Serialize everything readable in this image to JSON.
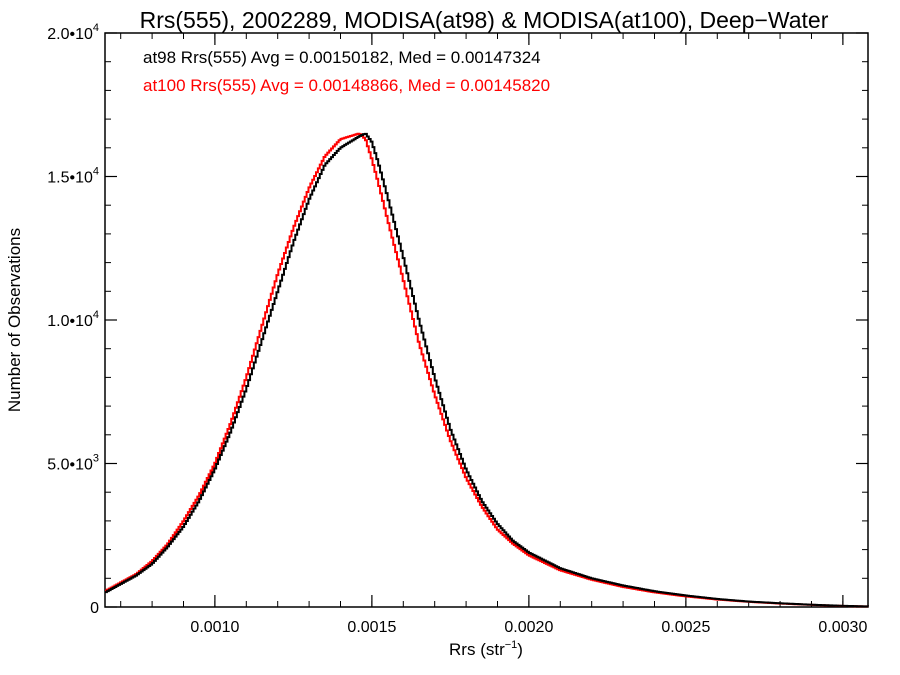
{
  "chart_data": {
    "type": "line",
    "title": "Rrs(555), 2002289, MODISA(at98) & MODISA(at100), Deep−Water",
    "xlabel_main": "Rrs (str",
    "xlabel_sup": "−1",
    "xlabel_tail": ")",
    "ylabel": "Number of Observations",
    "xlim": [
      0.00065,
      0.00308
    ],
    "ylim": [
      0,
      20000
    ],
    "x_ticks": [
      {
        "value": 0.001,
        "label": "0.0010"
      },
      {
        "value": 0.0015,
        "label": "0.0015"
      },
      {
        "value": 0.002,
        "label": "0.0020"
      },
      {
        "value": 0.0025,
        "label": "0.0025"
      },
      {
        "value": 0.003,
        "label": "0.0030"
      }
    ],
    "y_ticks": [
      {
        "value": 0,
        "label": "0",
        "exp": ""
      },
      {
        "value": 5000,
        "label": "5.0•10",
        "exp": "3"
      },
      {
        "value": 10000,
        "label": "1.0•10",
        "exp": "4"
      },
      {
        "value": 15000,
        "label": "1.5•10",
        "exp": "4"
      },
      {
        "value": 20000,
        "label": "2.0•10",
        "exp": "4"
      }
    ],
    "annotations": [
      {
        "text": "at98 Rrs(555) Avg = 0.00150182, Med = 0.00147324",
        "color": "#000000"
      },
      {
        "text": "at100 Rrs(555) Avg = 0.00148866, Med = 0.00145820",
        "color": "#ff0000"
      }
    ],
    "series": [
      {
        "color": "#000000",
        "x": [
          0.00065,
          0.0007,
          0.00075,
          0.0008,
          0.00085,
          0.0009,
          0.00095,
          0.001,
          0.00105,
          0.0011,
          0.00115,
          0.0012,
          0.00125,
          0.0013,
          0.00135,
          0.0014,
          0.00143,
          0.00146,
          0.00148,
          0.0015,
          0.00152,
          0.00155,
          0.0016,
          0.00165,
          0.0017,
          0.00175,
          0.0018,
          0.00185,
          0.0019,
          0.00195,
          0.002,
          0.0021,
          0.0022,
          0.0023,
          0.0024,
          0.0025,
          0.0026,
          0.0027,
          0.0028,
          0.0029,
          0.003,
          0.00308
        ],
        "y": [
          500,
          800,
          1100,
          1500,
          2100,
          2800,
          3700,
          4800,
          6100,
          7600,
          9300,
          11000,
          12700,
          14200,
          15400,
          16000,
          16200,
          16400,
          16500,
          16200,
          15500,
          14300,
          12200,
          10000,
          8000,
          6200,
          4800,
          3700,
          2900,
          2300,
          1900,
          1350,
          1000,
          750,
          550,
          400,
          280,
          190,
          130,
          80,
          40,
          20
        ]
      },
      {
        "color": "#ff0000",
        "x": [
          0.00065,
          0.0007,
          0.00075,
          0.0008,
          0.00085,
          0.0009,
          0.00095,
          0.001,
          0.00105,
          0.0011,
          0.00115,
          0.0012,
          0.00125,
          0.0013,
          0.00135,
          0.0014,
          0.00143,
          0.00146,
          0.00148,
          0.0015,
          0.00152,
          0.00155,
          0.0016,
          0.00165,
          0.0017,
          0.00175,
          0.0018,
          0.00185,
          0.0019,
          0.00195,
          0.002,
          0.0021,
          0.0022,
          0.0023,
          0.0024,
          0.0025,
          0.0026,
          0.0027,
          0.0028,
          0.0029,
          0.003,
          0.00308
        ],
        "y": [
          550,
          850,
          1150,
          1600,
          2200,
          3000,
          3900,
          5000,
          6400,
          8000,
          9800,
          11600,
          13200,
          14600,
          15700,
          16300,
          16400,
          16500,
          16300,
          15600,
          14800,
          13500,
          11400,
          9200,
          7400,
          5800,
          4500,
          3500,
          2700,
          2200,
          1800,
          1280,
          950,
          700,
          510,
          370,
          260,
          180,
          120,
          75,
          38,
          18
        ]
      }
    ]
  }
}
